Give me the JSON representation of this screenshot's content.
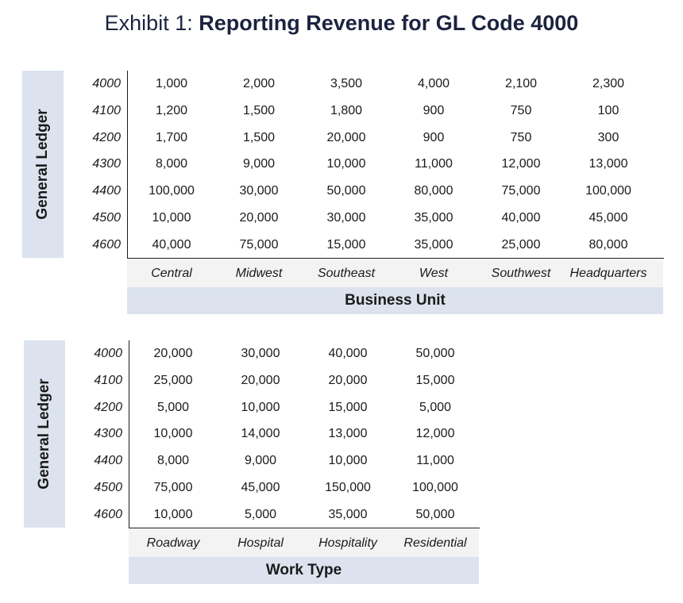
{
  "title": {
    "prefix": "Exhibit 1: ",
    "bold": "Reporting Revenue for GL Code 4000"
  },
  "table1": {
    "row_axis_label": "General Ledger",
    "col_axis_label": "Business Unit",
    "row_codes": [
      "4000",
      "4100",
      "4200",
      "4300",
      "4400",
      "4500",
      "4600"
    ],
    "columns": [
      "Central",
      "Midwest",
      "Southeast",
      "West",
      "Southwest",
      "Headquarters"
    ],
    "rows": [
      [
        "1,000",
        "2,000",
        "3,500",
        "4,000",
        "2,100",
        "2,300"
      ],
      [
        "1,200",
        "1,500",
        "1,800",
        "900",
        "750",
        "100"
      ],
      [
        "1,700",
        "1,500",
        "20,000",
        "900",
        "750",
        "300"
      ],
      [
        "8,000",
        "9,000",
        "10,000",
        "11,000",
        "12,000",
        "13,000"
      ],
      [
        "100,000",
        "30,000",
        "50,000",
        "80,000",
        "75,000",
        "100,000"
      ],
      [
        "10,000",
        "20,000",
        "30,000",
        "35,000",
        "40,000",
        "45,000"
      ],
      [
        "40,000",
        "75,000",
        "15,000",
        "35,000",
        "25,000",
        "80,000"
      ]
    ]
  },
  "table2": {
    "row_axis_label": "General Ledger",
    "col_axis_label": "Work Type",
    "row_codes": [
      "4000",
      "4100",
      "4200",
      "4300",
      "4400",
      "4500",
      "4600"
    ],
    "columns": [
      "Roadway",
      "Hospital",
      "Hospitality",
      "Residential"
    ],
    "rows": [
      [
        "20,000",
        "30,000",
        "40,000",
        "50,000"
      ],
      [
        "25,000",
        "20,000",
        "20,000",
        "15,000"
      ],
      [
        "5,000",
        "10,000",
        "15,000",
        "5,000"
      ],
      [
        "10,000",
        "14,000",
        "13,000",
        "12,000"
      ],
      [
        "8,000",
        "9,000",
        "10,000",
        "11,000"
      ],
      [
        "75,000",
        "45,000",
        "150,000",
        "100,000"
      ],
      [
        "10,000",
        "5,000",
        "35,000",
        "50,000"
      ]
    ]
  }
}
